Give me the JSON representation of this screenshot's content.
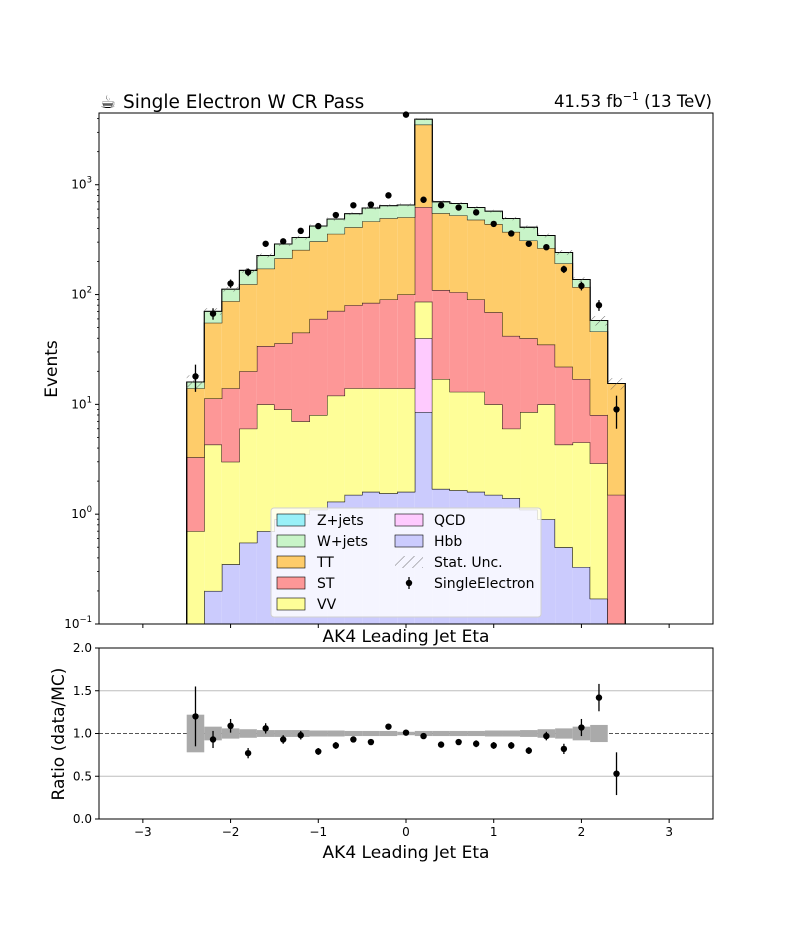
{
  "colors": {
    "Z+jets": "#99f0f8",
    "W+jets": "#c8f4c8",
    "TT": "#fecc6a",
    "ST": "#fd9797",
    "VV": "#fefe98",
    "QCD": "#fecafe",
    "Hbb": "#cbcbfd",
    "data": "#000000",
    "unc": "#aaaaaa"
  },
  "chart_data": [
    {
      "type": "bar",
      "stacked": true,
      "title": "Single Electron W CR Pass",
      "title_icon": "coffee-cup-icon",
      "lumi_prefix": "41.53 fb",
      "lumi_exp": "−1",
      "lumi_suffix": " (13 TeV)",
      "xlabel": "AK4 Leading Jet Eta",
      "ylabel": "Events",
      "yscale": "log",
      "xlim": [
        -3.5,
        3.5
      ],
      "ylim": [
        0.1,
        4500
      ],
      "x_ticks": [
        -3,
        -2,
        -1,
        0,
        1,
        2,
        3
      ],
      "y_ticks": [
        {
          "base": "10",
          "exp": "−1",
          "v": 0.1
        },
        {
          "base": "10",
          "exp": "0",
          "v": 1
        },
        {
          "base": "10",
          "exp": "1",
          "v": 10
        },
        {
          "base": "10",
          "exp": "2",
          "v": 100
        },
        {
          "base": "10",
          "exp": "3",
          "v": 1000
        }
      ],
      "bin_edges": [
        -2.5,
        -2.3,
        -2.1,
        -1.9,
        -1.7,
        -1.5,
        -1.3,
        -1.1,
        -0.9,
        -0.7,
        -0.5,
        -0.3,
        -0.1,
        0.1,
        0.3,
        0.5,
        0.7,
        0.9,
        1.1,
        1.3,
        1.5,
        1.7,
        1.9,
        2.1,
        2.3,
        2.5
      ],
      "legend": {
        "position": "bottom-center",
        "entries": [
          "Z+jets",
          "QCD",
          "W+jets",
          "Hbb",
          "TT",
          "Stat. Unc.",
          "ST",
          "SingleElectron",
          "VV"
        ]
      },
      "series": [
        {
          "name": "Hbb",
          "values": [
            0.1,
            0.2,
            0.35,
            0.55,
            0.7,
            0.9,
            1.0,
            1.1,
            1.3,
            1.5,
            1.6,
            1.55,
            1.6,
            8.5,
            1.7,
            1.65,
            1.6,
            1.5,
            1.4,
            1.1,
            0.9,
            0.5,
            0.33,
            0.17,
            0.1
          ]
        },
        {
          "name": "QCD",
          "values": [
            0,
            0,
            0,
            0,
            0,
            0,
            0,
            0,
            0,
            0,
            0,
            0,
            0,
            31.5,
            0,
            0,
            0,
            0,
            0,
            0,
            0,
            0,
            0,
            0,
            0
          ]
        },
        {
          "name": "VV",
          "values": [
            0.6,
            4.1,
            2.65,
            5.45,
            9.3,
            8.1,
            6.0,
            6.9,
            10.7,
            12.5,
            12.4,
            12.45,
            12.4,
            46,
            15.3,
            11.35,
            11.4,
            8.5,
            4.6,
            7.4,
            9.1,
            3.8,
            4.17,
            2.73,
            0
          ]
        },
        {
          "name": "ST",
          "values": [
            2.6,
            7.0,
            11.0,
            14.0,
            24.0,
            27.0,
            38.0,
            52.0,
            59.0,
            66.0,
            70.0,
            76.0,
            86.0,
            540,
            93.0,
            92.0,
            77.0,
            59.0,
            36.0,
            31.5,
            25.0,
            17.7,
            12.5,
            5.1,
            1.4
          ]
        },
        {
          "name": "TT",
          "values": [
            10.7,
            44,
            73,
            104,
            138,
            178,
            210,
            245,
            286,
            330,
            380,
            405,
            405,
            2900,
            440,
            420,
            390,
            370,
            330,
            270,
            230,
            170,
            100,
            38,
            14
          ]
        },
        {
          "name": "W+jets",
          "values": [
            2,
            15,
            25,
            42,
            55,
            75,
            75,
            115,
            130,
            135,
            150,
            150,
            150,
            430,
            150,
            150,
            140,
            135,
            120,
            100,
            80,
            50,
            20,
            12,
            0
          ]
        },
        {
          "name": "Z+jets",
          "values": [
            0,
            0,
            0,
            0,
            0,
            0,
            0,
            0,
            0,
            0,
            0,
            0,
            0,
            0,
            0,
            0,
            0,
            0,
            0,
            0,
            0,
            0,
            0,
            0,
            0
          ]
        }
      ],
      "unc_frac": [
        0.15,
        0.07,
        0.05,
        0.05,
        0.04,
        0.04,
        0.04,
        0.035,
        0.035,
        0.03,
        0.03,
        0.03,
        0.03,
        0.02,
        0.03,
        0.03,
        0.03,
        0.03,
        0.035,
        0.04,
        0.04,
        0.05,
        0.05,
        0.1,
        0.12
      ],
      "data": {
        "name": "SingleElectron",
        "x": [
          -2.4,
          -2.2,
          -2.0,
          -1.8,
          -1.6,
          -1.4,
          -1.2,
          -1.0,
          -0.8,
          -0.6,
          -0.4,
          -0.2,
          0.0,
          0.2,
          0.4,
          0.6,
          0.8,
          1.0,
          1.2,
          1.4,
          1.6,
          1.8,
          2.0,
          2.2,
          2.4
        ],
        "y": [
          18,
          67,
          126,
          160,
          290,
          305,
          380,
          420,
          530,
          650,
          660,
          800,
          4350,
          730,
          650,
          620,
          560,
          440,
          360,
          290,
          270,
          170,
          120,
          80,
          9
        ],
        "err_lo": [
          5,
          8,
          11,
          13,
          17,
          17,
          19,
          20,
          23,
          25,
          26,
          28,
          66,
          27,
          25,
          25,
          24,
          21,
          19,
          17,
          16,
          13,
          11,
          9,
          3
        ],
        "err_hi": [
          5,
          8,
          11,
          13,
          17,
          17,
          19,
          20,
          23,
          25,
          26,
          28,
          66,
          27,
          25,
          25,
          24,
          21,
          19,
          17,
          16,
          13,
          11,
          9,
          3
        ]
      }
    },
    {
      "type": "scatter",
      "xlabel": "AK4 Leading Jet Eta",
      "ylabel": "Ratio (data/MC)",
      "xlim": [
        -3.5,
        3.5
      ],
      "ylim": [
        0.0,
        2.0
      ],
      "x_ticks": [
        -3,
        -2,
        -1,
        0,
        1,
        2,
        3
      ],
      "y_ticks": [
        0.0,
        0.5,
        1.0,
        1.5,
        2.0
      ],
      "hgrid": [
        0.5,
        1.5
      ],
      "ref_line": 1.0,
      "x": [
        -2.4,
        -2.2,
        -2.0,
        -1.8,
        -1.6,
        -1.4,
        -1.2,
        -1.0,
        -0.8,
        -0.6,
        -0.4,
        -0.2,
        0.0,
        0.2,
        0.4,
        0.6,
        0.8,
        1.0,
        1.2,
        1.4,
        1.6,
        1.8,
        2.0,
        2.2,
        2.4
      ],
      "y": [
        1.2,
        0.93,
        1.09,
        0.77,
        1.06,
        0.93,
        0.98,
        0.79,
        0.86,
        0.93,
        0.9,
        1.08,
        1.01,
        0.97,
        0.87,
        0.9,
        0.88,
        0.86,
        0.86,
        0.8,
        0.97,
        0.82,
        1.07,
        1.42,
        0.53
      ],
      "err": [
        0.35,
        0.1,
        0.08,
        0.06,
        0.06,
        0.05,
        0.05,
        0.04,
        0.04,
        0.03,
        0.03,
        0.03,
        0.015,
        0.03,
        0.03,
        0.03,
        0.04,
        0.04,
        0.04,
        0.04,
        0.05,
        0.06,
        0.1,
        0.16,
        0.25
      ],
      "unc_half": [
        0.22,
        0.08,
        0.06,
        0.05,
        0.04,
        0.04,
        0.04,
        0.035,
        0.035,
        0.03,
        0.03,
        0.03,
        0.02,
        0.03,
        0.03,
        0.03,
        0.03,
        0.035,
        0.035,
        0.04,
        0.05,
        0.06,
        0.08,
        0.1,
        0
      ]
    }
  ]
}
